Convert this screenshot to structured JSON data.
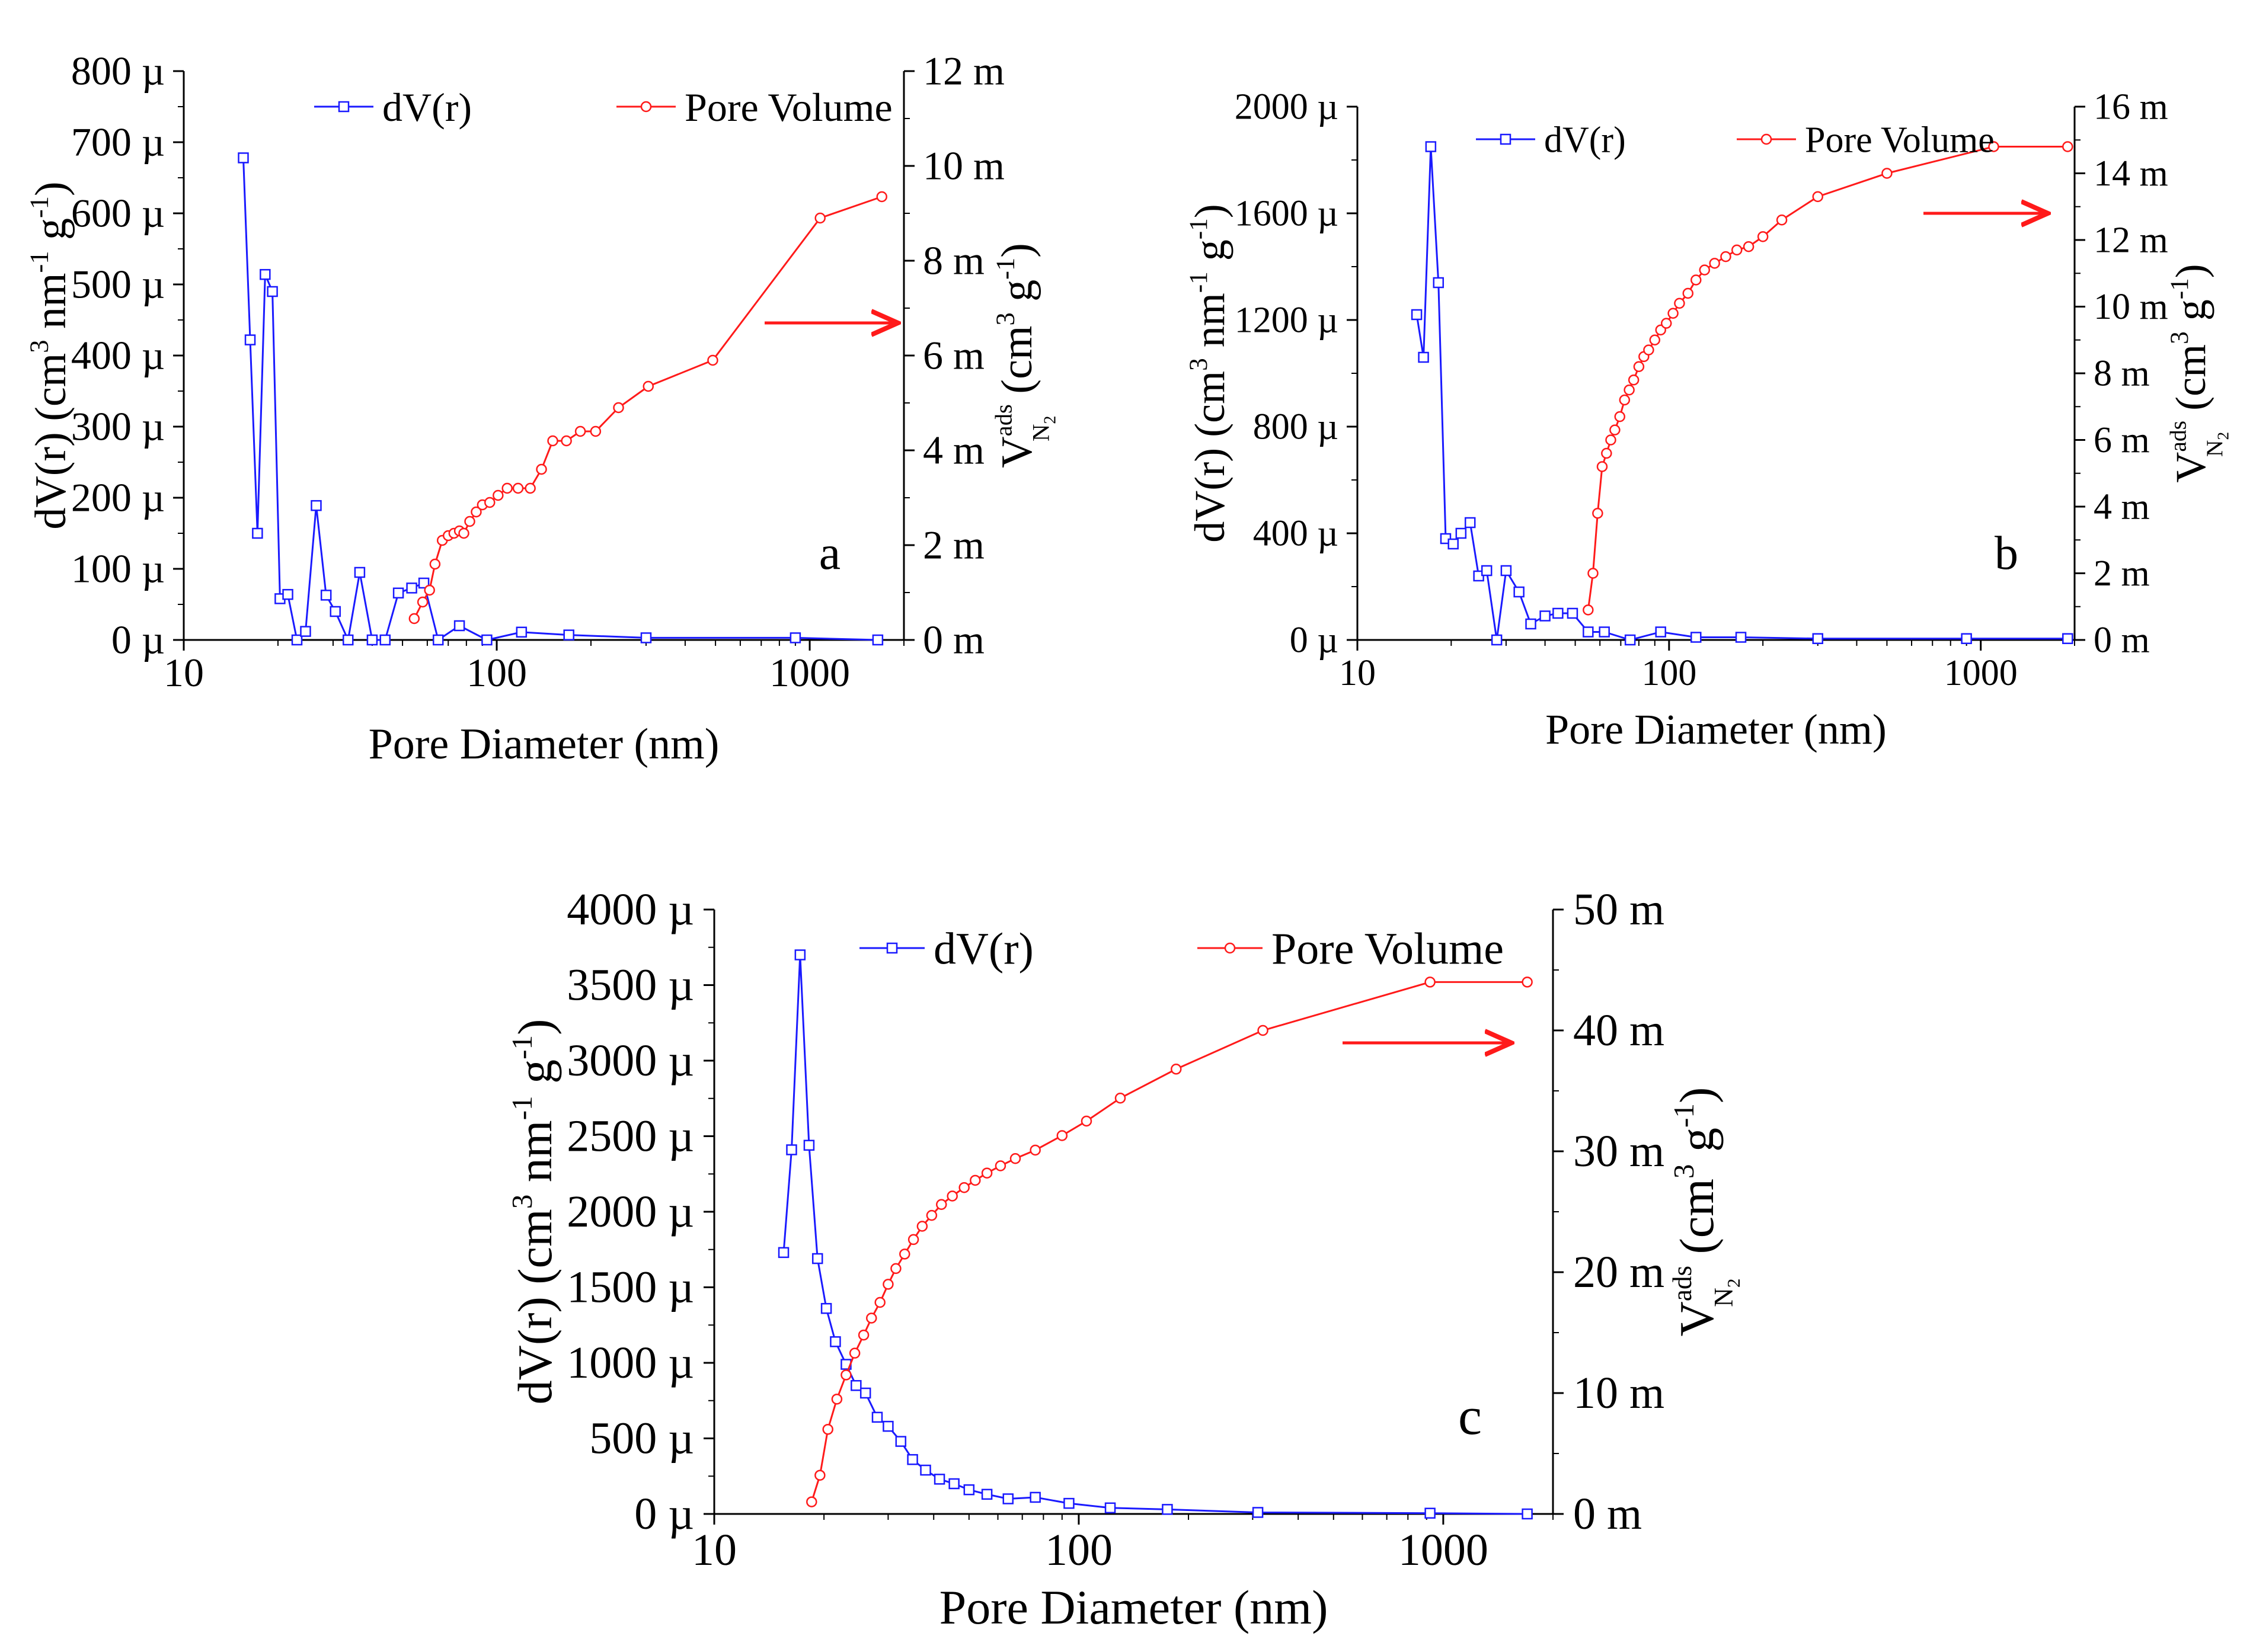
{
  "chart_data": [
    {
      "id": "a",
      "type": "line",
      "panel_label": "a",
      "xlabel": "Pore Diameter (nm)",
      "xscale": "log",
      "xlim": [
        10,
        2000
      ],
      "x_ticks": [
        "10",
        "100",
        "1000"
      ],
      "ylabel": "dV(r) (cm3 nm-1 g-1)",
      "ylabel_parts": {
        "base": "dV(r) (cm",
        "sup1": "3",
        "mid": " nm",
        "sup2": "-1",
        "mid2": " g",
        "sup3": "-1",
        "end": ")"
      },
      "ylim": [
        0,
        800
      ],
      "y_ticks": [
        "0 µ",
        "100 µ",
        "200 µ",
        "300 µ",
        "400 µ",
        "500 µ",
        "600 µ",
        "700 µ",
        "800 µ"
      ],
      "y2label": "V_N2^ads (cm3 g-1)",
      "y2label_parts": {
        "v": "V",
        "sup": "ads",
        "sub": "N",
        "subsub": "2",
        "rest": " (cm",
        "sup2": "3",
        "rest2": " g",
        "sup3": "-1",
        "end": ")"
      },
      "y2lim": [
        0,
        12
      ],
      "y2_ticks": [
        "0 m",
        "2 m",
        "4 m",
        "6 m",
        "8 m",
        "10 m",
        "12 m"
      ],
      "legend": [
        "dV(r)",
        "Pore Volume"
      ],
      "arrow": "right",
      "series": [
        {
          "name": "dV(r)",
          "axis": "left",
          "color": "#1a1aff",
          "marker": "square",
          "x": [
            15.5,
            16.3,
            17.2,
            18.2,
            19.2,
            20.3,
            21.5,
            23.0,
            24.5,
            26.5,
            28.5,
            30.5,
            33.5,
            36.5,
            40.0,
            44.0,
            48.5,
            53.5,
            58.5,
            65.0,
            76.0,
            93.0,
            120.0,
            170.0,
            300.0,
            900.0,
            1650.0
          ],
          "y": [
            678,
            422,
            150,
            514,
            490,
            58,
            64,
            0,
            12,
            189,
            63,
            40,
            0,
            95,
            0,
            0,
            66,
            73,
            80,
            0,
            20,
            0,
            11,
            7,
            3,
            3,
            0
          ]
        },
        {
          "name": "Pore Volume",
          "axis": "right",
          "color": "#ff1a1a",
          "marker": "circle",
          "x": [
            54.5,
            58.0,
            61.0,
            63.5,
            67.0,
            70.0,
            73.0,
            76.0,
            78.5,
            82.0,
            86.0,
            90.0,
            95.0,
            101.0,
            108.0,
            117.0,
            128.0,
            139.0,
            151.0,
            167.0,
            185.0,
            207.0,
            245.0,
            305.0,
            490.0,
            1080.0,
            1700.0
          ],
          "y": [
            0.45,
            0.8,
            1.05,
            1.6,
            2.1,
            2.2,
            2.25,
            2.3,
            2.25,
            2.5,
            2.7,
            2.85,
            2.9,
            3.05,
            3.2,
            3.2,
            3.2,
            3.6,
            4.2,
            4.2,
            4.4,
            4.4,
            4.9,
            5.35,
            5.9,
            8.9,
            9.35
          ]
        }
      ]
    },
    {
      "id": "b",
      "type": "line",
      "panel_label": "b",
      "xlabel": "Pore Diameter (nm)",
      "xscale": "log",
      "xlim": [
        10,
        2000
      ],
      "x_ticks": [
        "10",
        "100",
        "1000"
      ],
      "ylabel": "dV(r) (cm3 nm-1 g-1)",
      "ylabel_parts": {
        "base": "dV(r) (cm",
        "sup1": "3",
        "mid": " nm",
        "sup2": "-1",
        "mid2": " g",
        "sup3": "-1",
        "end": ")"
      },
      "ylim": [
        0,
        2000
      ],
      "y_ticks": [
        "0 µ",
        "400 µ",
        "800 µ",
        "1200 µ",
        "1600 µ",
        "2000 µ"
      ],
      "y2label": "V_N2^ads (cm3 g-1)",
      "y2label_parts": {
        "v": "V",
        "sup": "ads",
        "sub": "N",
        "subsub": "2",
        "rest": " (cm",
        "sup2": "3",
        "rest2": " g",
        "sup3": "-1",
        "end": ")"
      },
      "y2lim": [
        0,
        16
      ],
      "y2_ticks": [
        "0 m",
        "2 m",
        "4 m",
        "6 m",
        "8 m",
        "10 m",
        "12 m",
        "14 m",
        "16 m"
      ],
      "legend": [
        "dV(r)",
        "Pore Volume"
      ],
      "arrow": "right",
      "series": [
        {
          "name": "dV(r)",
          "axis": "left",
          "color": "#1a1aff",
          "marker": "square",
          "x": [
            15.5,
            16.3,
            17.2,
            18.2,
            19.2,
            20.3,
            21.5,
            23.0,
            24.5,
            26.0,
            28.0,
            30.0,
            33.0,
            36.0,
            40.0,
            44.0,
            49.0,
            55.0,
            62.0,
            75.0,
            94.0,
            122.0,
            170.0,
            300.0,
            900.0,
            1900.0
          ],
          "y": [
            1220,
            1060,
            1850,
            1340,
            380,
            360,
            400,
            440,
            240,
            260,
            0,
            260,
            180,
            60,
            90,
            100,
            100,
            30,
            30,
            0,
            30,
            10,
            10,
            5,
            5,
            5
          ]
        },
        {
          "name": "Pore Volume",
          "axis": "right",
          "color": "#ff1a1a",
          "marker": "circle",
          "x": [
            55.0,
            57.0,
            59.0,
            61.0,
            63.0,
            65.0,
            67.0,
            69.5,
            72.0,
            74.5,
            77.0,
            80.0,
            83.0,
            86.0,
            90.0,
            94.0,
            98.0,
            103.0,
            108.0,
            115.0,
            122.0,
            130.0,
            140.0,
            152.0,
            165.0,
            180.0,
            200.0,
            230.0,
            300.0,
            500.0,
            1100.0,
            1900.0
          ],
          "y": [
            0.9,
            2.0,
            3.8,
            5.2,
            5.6,
            6.0,
            6.3,
            6.7,
            7.2,
            7.5,
            7.8,
            8.2,
            8.5,
            8.7,
            9.0,
            9.3,
            9.5,
            9.8,
            10.1,
            10.4,
            10.8,
            11.1,
            11.3,
            11.5,
            11.7,
            11.8,
            12.1,
            12.6,
            13.3,
            14.0,
            14.8,
            14.8
          ]
        }
      ]
    },
    {
      "id": "c",
      "type": "line",
      "panel_label": "c",
      "xlabel": "Pore Diameter (nm)",
      "xscale": "log",
      "xlim": [
        10,
        2000
      ],
      "x_ticks": [
        "10",
        "100",
        "1000"
      ],
      "ylabel": "dV(r) (cm3 nm-1 g-1)",
      "ylabel_parts": {
        "base": "dV(r) (cm",
        "sup1": "3",
        "mid": " nm",
        "sup2": "-1",
        "mid2": " g",
        "sup3": "-1",
        "end": ")"
      },
      "ylim": [
        0,
        4000
      ],
      "y_ticks": [
        "0 µ",
        "500 µ",
        "1000 µ",
        "1500 µ",
        "2000 µ",
        "2500 µ",
        "3000 µ",
        "3500 µ",
        "4000 µ"
      ],
      "y2label": "V_N2^ads (cm3 g-1)",
      "y2label_parts": {
        "v": "V",
        "sup": "ads",
        "sub": "N",
        "subsub": "2",
        "rest": " (cm",
        "sup2": "3",
        "rest2": " g",
        "sup3": "-1",
        "end": ")"
      },
      "y2lim": [
        0,
        50
      ],
      "y2_ticks": [
        "0 m",
        "10 m",
        "20 m",
        "30 m",
        "40 m",
        "50 m"
      ],
      "legend": [
        "dV(r)",
        "Pore Volume"
      ],
      "arrow": "right",
      "series": [
        {
          "name": "dV(r)",
          "axis": "left",
          "color": "#1a1aff",
          "marker": "square",
          "x": [
            15.5,
            16.3,
            17.2,
            18.2,
            19.2,
            20.3,
            21.5,
            23.0,
            24.5,
            26.0,
            28.0,
            30.0,
            32.5,
            35.0,
            38.0,
            41.5,
            45.5,
            50.0,
            56.0,
            64.0,
            76.0,
            94.0,
            122.0,
            175.0,
            310.0,
            920.0,
            1700.0
          ],
          "y": [
            1730,
            2410,
            3700,
            2440,
            1690,
            1360,
            1140,
            990,
            850,
            800,
            640,
            580,
            480,
            360,
            290,
            230,
            200,
            160,
            130,
            100,
            110,
            70,
            40,
            30,
            10,
            5,
            0
          ]
        },
        {
          "name": "Pore Volume",
          "axis": "right",
          "color": "#ff1a1a",
          "marker": "circle",
          "x": [
            18.5,
            19.5,
            20.5,
            21.7,
            23.0,
            24.3,
            25.7,
            27.0,
            28.5,
            30.0,
            31.5,
            33.3,
            35.2,
            37.2,
            39.5,
            42.0,
            45.0,
            48.5,
            52.0,
            56.0,
            61.0,
            67.0,
            76.0,
            90.0,
            105.0,
            130.0,
            185.0,
            320.0,
            920.0,
            1700.0
          ],
          "y": [
            1.0,
            3.2,
            7.0,
            9.5,
            11.5,
            13.3,
            14.8,
            16.2,
            17.5,
            19.0,
            20.3,
            21.5,
            22.7,
            23.8,
            24.7,
            25.6,
            26.3,
            27.0,
            27.6,
            28.2,
            28.8,
            29.4,
            30.1,
            31.3,
            32.5,
            34.4,
            36.8,
            40.0,
            44.0,
            44.0
          ]
        }
      ]
    }
  ]
}
